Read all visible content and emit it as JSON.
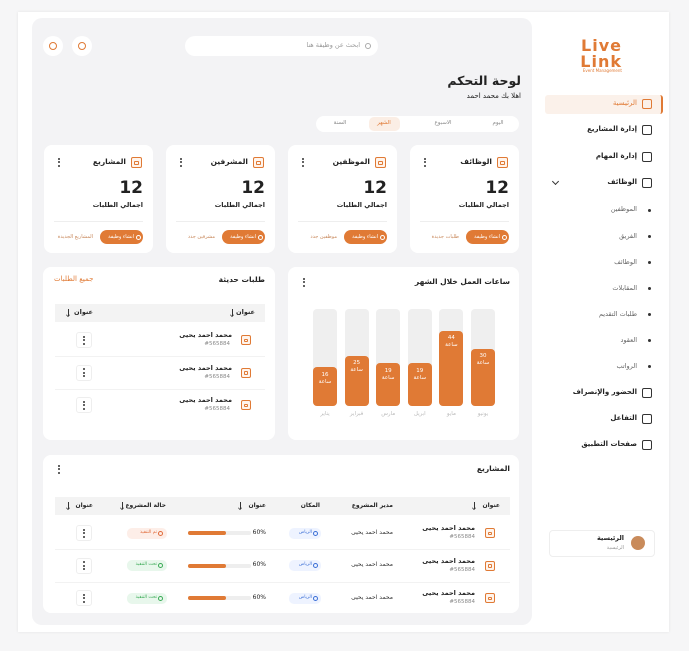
{
  "sidebar": {
    "logo": {
      "line1": "Live",
      "line2": "Link",
      "tagline": "Event Management"
    },
    "nav": [
      "الرئيسية",
      "إدارة المشاريع",
      "إدارة المهام",
      "الوظائف"
    ],
    "subnav": [
      "الموظفين",
      "الفريق",
      "الوظائف",
      "المقابلات",
      "طلبات التقديم",
      "العقود",
      "الرواتب"
    ],
    "nav_bottom": [
      "الحضور والإنصراف",
      "التفاعل",
      "صفحات التطبيق"
    ],
    "user": {
      "name": "الرئيسية",
      "role": "الرئيسية"
    }
  },
  "header": {
    "search_placeholder": "ابحث عن وظيفة هنا",
    "title": "لوحة التحكم",
    "greeting": "اهلا بك محمد احمد",
    "tabs": [
      "اليوم",
      "الاسبوع",
      "الشهر",
      "السنة"
    ]
  },
  "stat_cards": [
    {
      "title": "الوظائف",
      "value": 12,
      "caption": "اجمالي الطلبات",
      "button": "انشاء وظيفة",
      "link": "طلبات جديدة"
    },
    {
      "title": "الموظفين",
      "value": 12,
      "caption": "اجمالي الطلبات",
      "button": "انشاء وظيفة",
      "link": "موظفين جدد"
    },
    {
      "title": "المشرفين",
      "value": 12,
      "caption": "اجمالي الطلبات",
      "button": "انشاء وظيفة",
      "link": "مشرفين جدد"
    },
    {
      "title": "المشاريع",
      "value": 12,
      "caption": "اجمالي الطلبات",
      "button": "انشاء وظيفة",
      "link": "المشاريع الجديدة"
    }
  ],
  "hours_chart": {
    "title": "ساعات العمل خلال الشهر",
    "unit": "ساعة",
    "categories": [
      "يناير",
      "فبراير",
      "مارس",
      "ابريل",
      "مايو",
      "يونيو"
    ],
    "values": [
      16,
      25,
      19,
      19,
      44,
      30
    ]
  },
  "recent_requests": {
    "title": "طلبات حديثة",
    "link": "جميع الطلبات",
    "columns": [
      "عنوان",
      "عنوان"
    ],
    "rows": [
      {
        "name": "محمد احمد يحيى",
        "id": "#565884"
      },
      {
        "name": "محمد احمد يحيى",
        "id": "#565884"
      },
      {
        "name": "محمد احمد يحيى",
        "id": "#565884"
      }
    ]
  },
  "projects": {
    "title": "المشاريع",
    "columns": [
      "عنوان",
      "مدير المشروع",
      "المكان",
      "عنوان",
      "حالة المشروع",
      "عنوان"
    ],
    "rows": [
      {
        "name": "محمد احمد يحيى",
        "id": "#565884",
        "manager": "محمد احمد يحيى",
        "place": "الرياض",
        "progress": 60,
        "progress_label": "60%",
        "status": "تم التنفيذ"
      },
      {
        "name": "محمد احمد يحيى",
        "id": "#565884",
        "manager": "محمد احمد يحيى",
        "place": "الرياض",
        "progress": 60,
        "progress_label": "60%",
        "status": "تحت التنفيذ"
      },
      {
        "name": "محمد احمد يحيى",
        "id": "#565884",
        "manager": "محمد احمد يحيى",
        "place": "الرياض",
        "progress": 60,
        "progress_label": "60%",
        "status": "تحت التنفيذ"
      }
    ]
  }
}
